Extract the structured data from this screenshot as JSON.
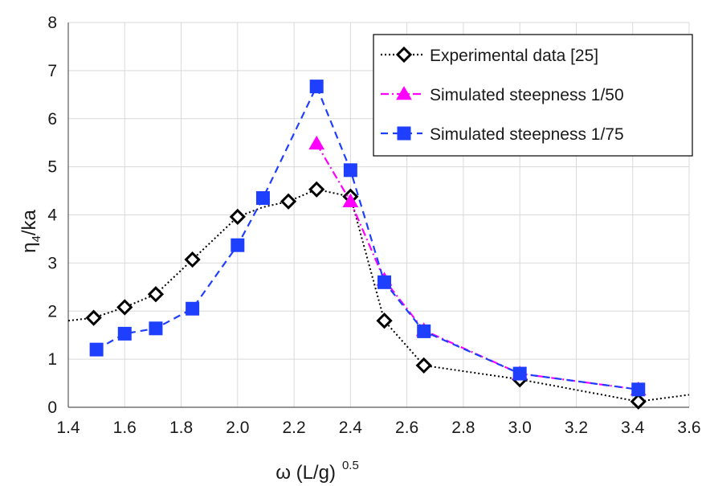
{
  "chart_data": {
    "type": "line",
    "title": "",
    "xlabel_main": "ω (L/g)",
    "xlabel_sup": "0.5",
    "ylabel_main": "η",
    "ylabel_sub": "4",
    "ylabel_rest": "/ka",
    "xlim": [
      1.4,
      3.6
    ],
    "ylim": [
      0,
      8
    ],
    "x_ticks": [
      "1.4",
      "1.6",
      "1.8",
      "2.0",
      "2.2",
      "2.4",
      "2.6",
      "2.8",
      "3.0",
      "3.2",
      "3.4",
      "3.6"
    ],
    "y_ticks": [
      "0",
      "1",
      "2",
      "3",
      "4",
      "5",
      "6",
      "7",
      "8"
    ],
    "grid": true,
    "legend_position": "top-right",
    "series": [
      {
        "name": "Experimental data [25]",
        "color": "#000000",
        "marker": "diamond-open",
        "line_style": "dotted",
        "x": [
          1.49,
          1.6,
          1.71,
          1.84,
          2.0,
          2.18,
          2.28,
          2.4,
          2.52,
          2.66,
          3.0,
          3.42
        ],
        "y": [
          1.86,
          2.08,
          2.35,
          3.07,
          3.96,
          4.28,
          4.53,
          4.38,
          1.8,
          0.87,
          0.58,
          0.12
        ],
        "curve_x": [
          1.4,
          1.49,
          1.6,
          1.71,
          1.84,
          2.0,
          2.09,
          2.18,
          2.28,
          2.4,
          2.52,
          2.66,
          3.0,
          3.42,
          3.6
        ],
        "curve_y": [
          1.8,
          1.86,
          2.08,
          2.35,
          3.07,
          3.96,
          4.16,
          4.28,
          4.53,
          4.38,
          1.8,
          0.87,
          0.58,
          0.12,
          0.26
        ]
      },
      {
        "name": "Simulated steepness 1/50",
        "color": "#ff00ff",
        "marker": "triangle",
        "line_style": "dash-dot",
        "x": [
          2.28,
          2.4,
          2.52,
          2.66,
          3.0,
          3.42
        ],
        "y": [
          5.48,
          4.28,
          2.65,
          1.6,
          0.7,
          0.37
        ]
      },
      {
        "name": "Simulated steepness 1/75",
        "color": "#1f3fff",
        "marker": "square",
        "line_style": "dashed",
        "x": [
          1.5,
          1.6,
          1.71,
          1.84,
          2.0,
          2.09,
          2.28,
          2.4,
          2.52,
          2.66,
          3.0,
          3.42
        ],
        "y": [
          1.2,
          1.53,
          1.64,
          2.05,
          3.37,
          4.35,
          6.67,
          4.93,
          2.6,
          1.58,
          0.7,
          0.37
        ]
      }
    ]
  }
}
